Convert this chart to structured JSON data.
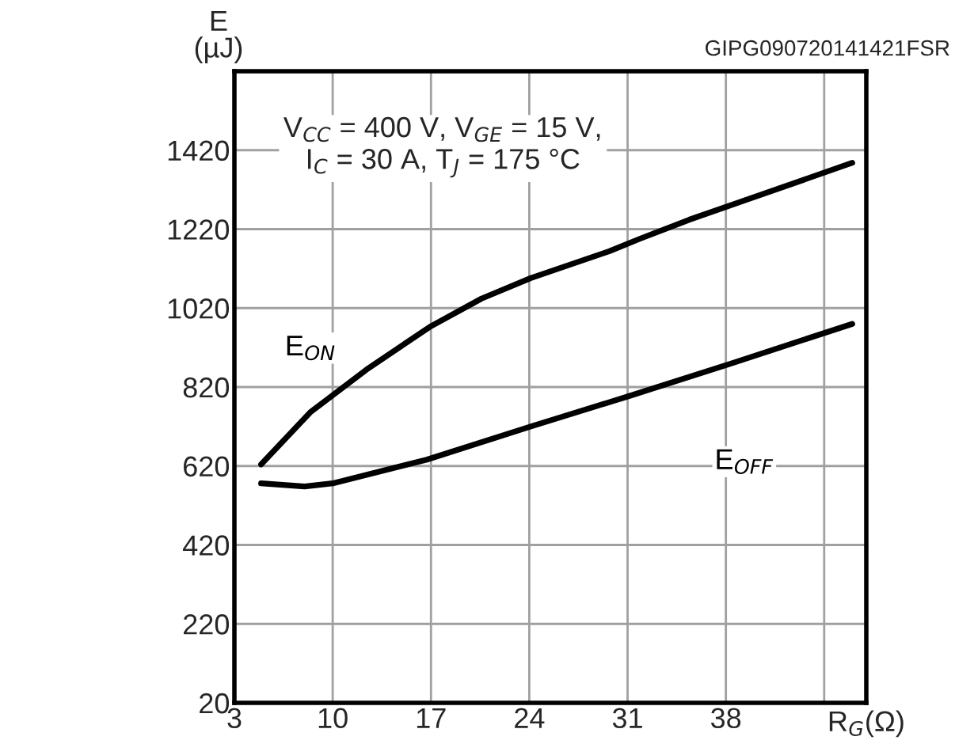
{
  "chart_data": {
    "type": "line",
    "ylabel": "E\n(µJ)",
    "xlabel": "R$_{G}$(Ω)",
    "annotations": [
      "GIPG090720141421FSR",
      "V$_{CC}$ = 400 V, V$_{GE}$ = 15 V,\nI$_{C}$ = 30 A, T$_{J}$ = 175 °C"
    ],
    "series": [
      {
        "name": "E$_{ON}$",
        "color": "#000000",
        "x": [
          4.9,
          8.4,
          12.4,
          16.9,
          20.6,
          24.1,
          29.7,
          31.9,
          35.4,
          47.0
        ],
        "values": [
          624,
          756,
          864,
          972,
          1044,
          1096,
          1164,
          1196,
          1244,
          1388
        ]
      },
      {
        "name": "E$_{OFF}$",
        "color": "#000000",
        "x": [
          4.9,
          8.0,
          10.0,
          16.7,
          24.1,
          31.0,
          38.4,
          47.0
        ],
        "values": [
          576,
          568,
          576,
          636,
          720,
          796,
          880,
          980
        ]
      }
    ],
    "xlim": [
      3,
      48
    ],
    "xticks": [
      3,
      10,
      17,
      24,
      31,
      38,
      {
        "value": 45,
        "label": null
      }
    ],
    "ylim": [
      20,
      1620
    ],
    "yticks": [
      20,
      220,
      420,
      620,
      820,
      1020,
      1220,
      1420,
      {
        "value": 1620,
        "label": null
      }
    ],
    "grid": true,
    "legend": false,
    "line_style": "solid",
    "marker": "none"
  }
}
